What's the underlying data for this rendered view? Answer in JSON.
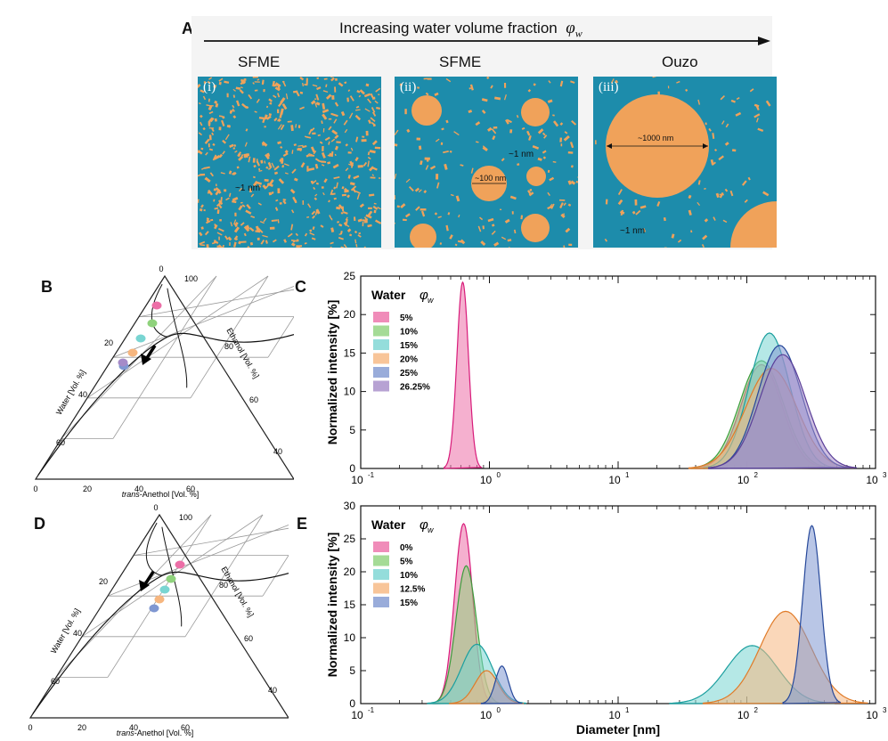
{
  "panel_labels": {
    "a": "A",
    "b": "B",
    "c": "C",
    "d": "D",
    "e": "E"
  },
  "panel_a": {
    "arrow_label": "Increasing water volume fraction",
    "arrow_symbol": "φ",
    "arrow_symbol_sub": "w",
    "regimes": [
      "SFME",
      "SFME",
      "Ouzo"
    ],
    "scenes": [
      {
        "numeral": "(i)",
        "labels": [
          "~1 nm"
        ]
      },
      {
        "numeral": "(ii)",
        "labels": [
          "~100 nm",
          "~1 nm"
        ]
      },
      {
        "numeral": "(iii)",
        "labels": [
          "~1000 nm",
          "~1 nm"
        ]
      }
    ],
    "colors": {
      "background": "#1d8cab",
      "droplet": "#f0a25a",
      "strip": "#f4f4f4"
    }
  },
  "ternary": {
    "left_axis_label": "Water [Vol. %]",
    "right_axis_label": "Ethanol [Vol. %]",
    "bottom_axis_label_italic": "trans",
    "bottom_axis_label_rest": "-Anethol [Vol. %]",
    "left_ticks": [
      "20",
      "40",
      "60"
    ],
    "right_ticks": [
      "100",
      "80",
      "60",
      "40"
    ],
    "bottom_ticks": [
      "0",
      "20",
      "40",
      "60"
    ],
    "apex_tick": "0"
  },
  "ternary_points": {
    "B": [
      {
        "color": "#ec6fa7",
        "label": "5%"
      },
      {
        "color": "#8fd27c",
        "label": "10%"
      },
      {
        "color": "#79d5d2",
        "label": "15%"
      },
      {
        "color": "#f6b67f",
        "label": "20%"
      },
      {
        "color": "#7f97d1",
        "label": "25%"
      },
      {
        "color": "#a58bc8",
        "label": "26.25%"
      }
    ],
    "D": [
      {
        "color": "#ec6fa7",
        "label": "0%"
      },
      {
        "color": "#8fd27c",
        "label": "5%"
      },
      {
        "color": "#79d5d2",
        "label": "10%"
      },
      {
        "color": "#f6b67f",
        "label": "12.5%"
      },
      {
        "color": "#7f97d1",
        "label": "15%"
      }
    ]
  },
  "chart_data": [
    {
      "panel": "C",
      "type": "area",
      "xscale": "log",
      "xlim": [
        0.1,
        1000
      ],
      "ylim": [
        0,
        25
      ],
      "xticks": [
        "10",
        "10",
        "10",
        "10",
        "10"
      ],
      "xtick_exponents": [
        "-1",
        "0",
        "1",
        "2",
        "3"
      ],
      "yticks": [
        "0",
        "5",
        "10",
        "15",
        "20",
        "25"
      ],
      "ylabel": "Normalized intensity [%]",
      "xlabel": "",
      "legend_title": "Water",
      "legend_symbol": "φ",
      "legend_symbol_sub": "w",
      "legend_position": "top-left",
      "series": [
        {
          "name": "5%",
          "color": "#ec6fa7",
          "stroke": "#d81b7a",
          "peaks": [
            {
              "center": 0.62,
              "height": 24.2,
              "width": 0.045
            },
            {
              "center": 130,
              "height": 13.5,
              "width": 0.16
            }
          ]
        },
        {
          "name": "10%",
          "color": "#8fd27c",
          "stroke": "#3c9c3c",
          "peaks": [
            {
              "center": 130,
              "height": 14.0,
              "width": 0.17
            }
          ]
        },
        {
          "name": "15%",
          "color": "#79d5d2",
          "stroke": "#1b9f9f",
          "peaks": [
            {
              "center": 150,
              "height": 17.6,
              "width": 0.16
            }
          ]
        },
        {
          "name": "20%",
          "color": "#f6b67f",
          "stroke": "#e07b28",
          "peaks": [
            {
              "center": 155,
              "height": 13.0,
              "width": 0.2
            }
          ]
        },
        {
          "name": "25%",
          "color": "#7f97d1",
          "stroke": "#26489a",
          "peaks": [
            {
              "center": 180,
              "height": 16.0,
              "width": 0.17
            }
          ]
        },
        {
          "name": "26.25%",
          "color": "#a58bc8",
          "stroke": "#5a3f99",
          "peaks": [
            {
              "center": 190,
              "height": 14.8,
              "width": 0.18
            }
          ]
        }
      ]
    },
    {
      "panel": "E",
      "type": "area",
      "xscale": "log",
      "xlim": [
        0.1,
        1000
      ],
      "ylim": [
        0,
        30
      ],
      "xticks": [
        "10",
        "10",
        "10",
        "10",
        "10"
      ],
      "xtick_exponents": [
        "-1",
        "0",
        "1",
        "2",
        "3"
      ],
      "yticks": [
        "0",
        "5",
        "10",
        "15",
        "20",
        "25",
        "30"
      ],
      "ylabel": "Normalized intensity [%]",
      "xlabel": "Diameter [nm]",
      "legend_title": "Water",
      "legend_symbol": "φ",
      "legend_symbol_sub": "w",
      "legend_position": "top-left",
      "series": [
        {
          "name": "0%",
          "color": "#ec6fa7",
          "stroke": "#d81b7a",
          "peaks": [
            {
              "center": 0.63,
              "height": 27.3,
              "width": 0.07
            }
          ]
        },
        {
          "name": "5%",
          "color": "#8fd27c",
          "stroke": "#3c9c3c",
          "peaks": [
            {
              "center": 0.66,
              "height": 20.9,
              "width": 0.08
            }
          ]
        },
        {
          "name": "10%",
          "color": "#79d5d2",
          "stroke": "#1b9f9f",
          "peaks": [
            {
              "center": 0.8,
              "height": 9.0,
              "width": 0.12
            },
            {
              "center": 110,
              "height": 8.8,
              "width": 0.2
            }
          ]
        },
        {
          "name": "12.5%",
          "color": "#f6b67f",
          "stroke": "#e07b28",
          "peaks": [
            {
              "center": 0.95,
              "height": 5.0,
              "width": 0.09
            },
            {
              "center": 200,
              "height": 14.0,
              "width": 0.2
            }
          ]
        },
        {
          "name": "15%",
          "color": "#7f97d1",
          "stroke": "#26489a",
          "peaks": [
            {
              "center": 1.25,
              "height": 5.7,
              "width": 0.05
            },
            {
              "center": 320,
              "height": 27.0,
              "width": 0.07
            }
          ]
        }
      ]
    }
  ]
}
